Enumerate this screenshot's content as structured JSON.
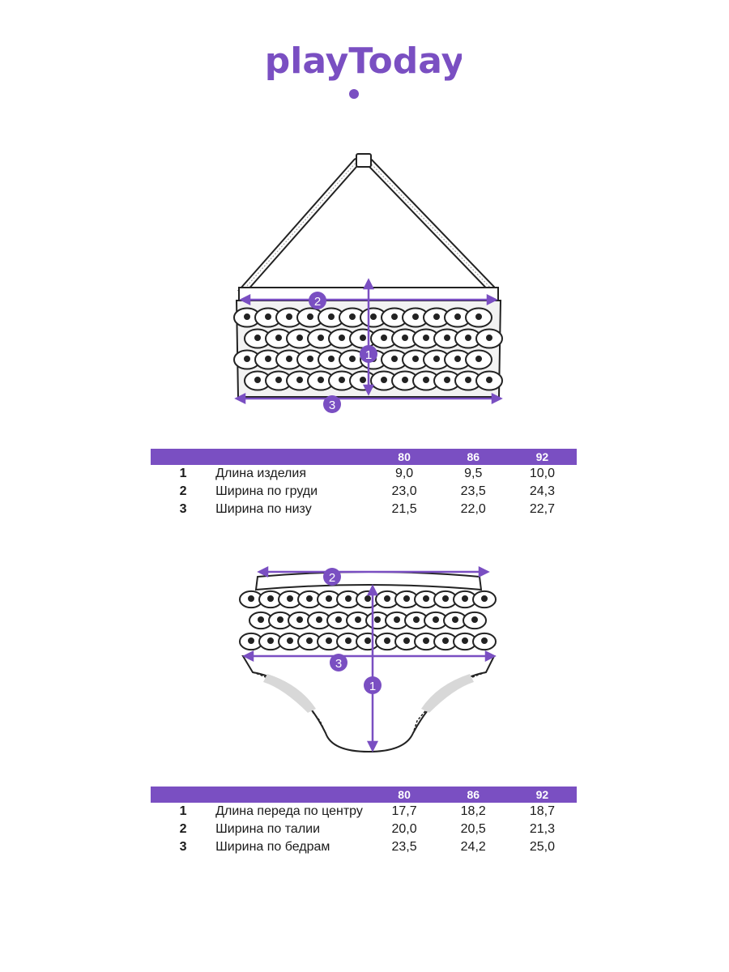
{
  "brand": {
    "logo_text": "playToday",
    "accent": "#7a4fc2"
  },
  "top_garment": {
    "markers": [
      "1",
      "2",
      "3"
    ]
  },
  "top_table": {
    "sizes": [
      "80",
      "86",
      "92"
    ],
    "rows": [
      {
        "num": "1",
        "name": "Длина изделия",
        "values": [
          "9,0",
          "9,5",
          "10,0"
        ]
      },
      {
        "num": "2",
        "name": "Ширина по груди",
        "values": [
          "23,0",
          "23,5",
          "24,3"
        ]
      },
      {
        "num": "3",
        "name": "Ширина по низу",
        "values": [
          "21,5",
          "22,0",
          "22,7"
        ]
      }
    ]
  },
  "bottom_garment": {
    "markers": [
      "1",
      "2",
      "3"
    ]
  },
  "bottom_table": {
    "sizes": [
      "80",
      "86",
      "92"
    ],
    "rows": [
      {
        "num": "1",
        "name": "Длина переда по центру",
        "values": [
          "17,7",
          "18,2",
          "18,7"
        ]
      },
      {
        "num": "2",
        "name": "Ширина по талии",
        "values": [
          "20,0",
          "20,5",
          "21,3"
        ]
      },
      {
        "num": "3",
        "name": "Ширина по бедрам",
        "values": [
          "23,5",
          "24,2",
          "25,0"
        ]
      }
    ]
  }
}
